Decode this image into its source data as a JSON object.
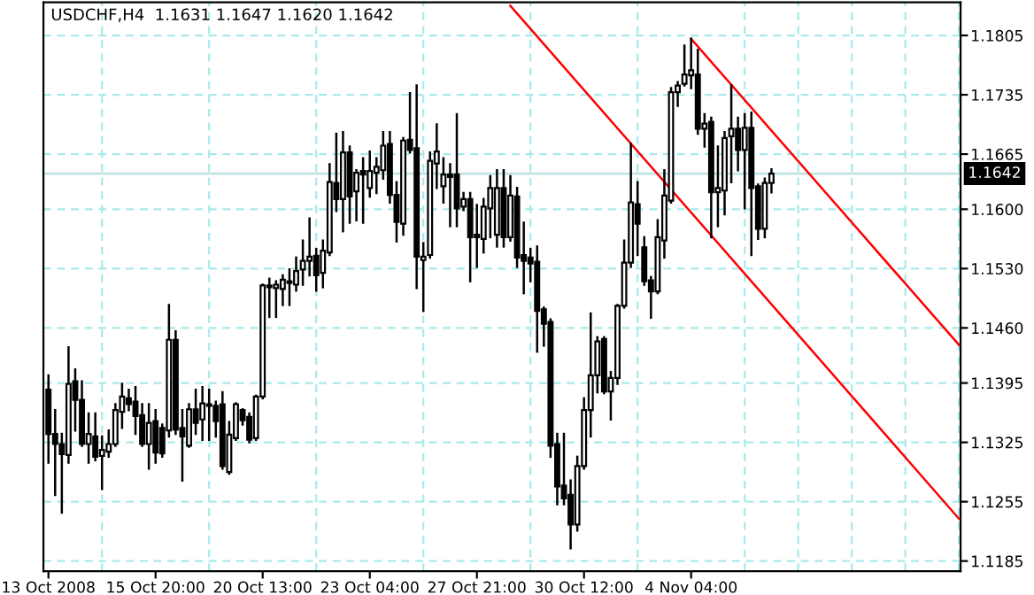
{
  "chart_data": {
    "type": "candlestick",
    "title": "USDCHF,H4  1.1631 1.1647 1.1620 1.1642",
    "categories": [
      "13 Oct 2008",
      null,
      null,
      null,
      null,
      null,
      null,
      null,
      null,
      null,
      null,
      null,
      null,
      null,
      null,
      null,
      "15 Oct 20:00",
      null,
      null,
      null,
      null,
      null,
      null,
      null,
      null,
      null,
      null,
      null,
      null,
      null,
      null,
      null,
      "20 Oct 13:00",
      null,
      null,
      null,
      null,
      null,
      null,
      null,
      null,
      null,
      null,
      null,
      null,
      null,
      null,
      null,
      "23 Oct 04:00",
      null,
      null,
      null,
      null,
      null,
      null,
      null,
      null,
      null,
      null,
      null,
      null,
      null,
      null,
      null,
      "27 Oct 21:00",
      null,
      null,
      null,
      null,
      null,
      null,
      null,
      null,
      null,
      null,
      null,
      null,
      null,
      null,
      null,
      "30 Oct 12:00",
      null,
      null,
      null,
      null,
      null,
      null,
      null,
      null,
      null,
      null,
      null,
      null,
      null,
      null,
      null,
      "4 Nov 04:00",
      null,
      null,
      null,
      null,
      null,
      null,
      null,
      null,
      null,
      null,
      null,
      null,
      null,
      null,
      null,
      null,
      null,
      null,
      null,
      null,
      null,
      null,
      null,
      null,
      null,
      null,
      null,
      null,
      null,
      null,
      null,
      null,
      null,
      null,
      null,
      null,
      null,
      null,
      null,
      null
    ],
    "ohlc": [
      [
        1.1387,
        1.1404,
        1.1301,
        1.1335
      ],
      [
        1.1335,
        1.1363,
        1.1263,
        1.1323
      ],
      [
        1.1323,
        1.1335,
        1.1242,
        1.1311
      ],
      [
        1.131,
        1.1437,
        1.1301,
        1.1394
      ],
      [
        1.1397,
        1.1411,
        1.1339,
        1.1375
      ],
      [
        1.1375,
        1.1397,
        1.1321,
        1.1323
      ],
      [
        1.1323,
        1.1359,
        1.1301,
        1.1335
      ],
      [
        1.1332,
        1.1359,
        1.1304,
        1.1308
      ],
      [
        1.1309,
        1.1332,
        1.127,
        1.1316
      ],
      [
        1.1314,
        1.1339,
        1.1308,
        1.1323
      ],
      [
        1.1323,
        1.137,
        1.1321,
        1.1363
      ],
      [
        1.1361,
        1.1394,
        1.1342,
        1.1379
      ],
      [
        1.1377,
        1.1387,
        1.1363,
        1.137
      ],
      [
        1.1373,
        1.139,
        1.1335,
        1.1356
      ],
      [
        1.1357,
        1.137,
        1.1321,
        1.1323
      ],
      [
        1.1323,
        1.137,
        1.1294,
        1.1348
      ],
      [
        1.135,
        1.1363,
        1.1301,
        1.1313
      ],
      [
        1.1342,
        1.1346,
        1.1308,
        1.1312
      ],
      [
        1.1339,
        1.1487,
        1.1332,
        1.1446
      ],
      [
        1.1446,
        1.1456,
        1.1335,
        1.134
      ],
      [
        1.1342,
        1.1363,
        1.128,
        1.1332
      ],
      [
        1.1321,
        1.137,
        1.132,
        1.1364
      ],
      [
        1.1364,
        1.1387,
        1.1335,
        1.1348
      ],
      [
        1.1352,
        1.139,
        1.1328,
        1.1371
      ],
      [
        1.137,
        1.1387,
        1.1328,
        1.1368
      ],
      [
        1.1368,
        1.1373,
        1.1332,
        1.135
      ],
      [
        1.137,
        1.1384,
        1.1294,
        1.1297
      ],
      [
        1.129,
        1.1349,
        1.1288,
        1.1334
      ],
      [
        1.133,
        1.1371,
        1.1328,
        1.137
      ],
      [
        1.1363,
        1.1364,
        1.1346,
        1.1351
      ],
      [
        1.1355,
        1.1359,
        1.1325,
        1.1328
      ],
      [
        1.133,
        1.138,
        1.1328,
        1.1379
      ],
      [
        1.1379,
        1.1511,
        1.1377,
        1.151
      ],
      [
        1.151,
        1.1518,
        1.1473,
        1.1508
      ],
      [
        1.1507,
        1.1515,
        1.1473,
        1.1511
      ],
      [
        1.1506,
        1.1522,
        1.1487,
        1.1517
      ],
      [
        1.1515,
        1.1529,
        1.1487,
        1.1513
      ],
      [
        1.1511,
        1.1543,
        1.1504,
        1.1527
      ],
      [
        1.1529,
        1.1563,
        1.1511,
        1.1539
      ],
      [
        1.1539,
        1.1589,
        1.1522,
        1.1544
      ],
      [
        1.1545,
        1.1553,
        1.1504,
        1.1522
      ],
      [
        1.1525,
        1.1563,
        1.1508,
        1.1551
      ],
      [
        1.1549,
        1.1653,
        1.1546,
        1.1632
      ],
      [
        1.1631,
        1.1689,
        1.1598,
        1.1612
      ],
      [
        1.1612,
        1.1691,
        1.1574,
        1.1667
      ],
      [
        1.1667,
        1.1674,
        1.1584,
        1.1615
      ],
      [
        1.1621,
        1.1646,
        1.1587,
        1.1643
      ],
      [
        1.1645,
        1.166,
        1.1584,
        1.1641
      ],
      [
        1.1625,
        1.1668,
        1.1615,
        1.1645
      ],
      [
        1.1643,
        1.166,
        1.1619,
        1.165
      ],
      [
        1.1646,
        1.1691,
        1.1636,
        1.1675
      ],
      [
        1.1677,
        1.1691,
        1.1608,
        1.1617
      ],
      [
        1.1617,
        1.1632,
        1.1562,
        1.1585
      ],
      [
        1.1583,
        1.1684,
        1.157,
        1.1681
      ],
      [
        1.1682,
        1.1737,
        1.1667,
        1.167
      ],
      [
        1.1672,
        1.1746,
        1.1507,
        1.1544
      ],
      [
        1.154,
        1.156,
        1.148,
        1.1544
      ],
      [
        1.1546,
        1.1667,
        1.1543,
        1.1657
      ],
      [
        1.1654,
        1.17,
        1.1625,
        1.1668
      ],
      [
        1.1627,
        1.166,
        1.1608,
        1.1641
      ],
      [
        1.1641,
        1.1653,
        1.158,
        1.1638
      ],
      [
        1.1641,
        1.1712,
        1.158,
        1.1601
      ],
      [
        1.1603,
        1.1619,
        1.1599,
        1.1612
      ],
      [
        1.1612,
        1.1619,
        1.1515,
        1.1567
      ],
      [
        1.157,
        1.1605,
        1.1532,
        1.1567
      ],
      [
        1.1565,
        1.1612,
        1.1549,
        1.1603
      ],
      [
        1.1601,
        1.1639,
        1.1567,
        1.1625
      ],
      [
        1.157,
        1.1646,
        1.1556,
        1.1625
      ],
      [
        1.1625,
        1.1646,
        1.1556,
        1.1567
      ],
      [
        1.1567,
        1.1639,
        1.1563,
        1.1616
      ],
      [
        1.1615,
        1.1625,
        1.1532,
        1.1543
      ],
      [
        1.1546,
        1.1584,
        1.1501,
        1.1539
      ],
      [
        1.1543,
        1.1553,
        1.1515,
        1.1536
      ],
      [
        1.1538,
        1.1556,
        1.1432,
        1.148
      ],
      [
        1.1482,
        1.1484,
        1.1439,
        1.1465
      ],
      [
        1.1467,
        1.147,
        1.1308,
        1.1321
      ],
      [
        1.1323,
        1.1335,
        1.1252,
        1.1273
      ],
      [
        1.1274,
        1.1335,
        1.1252,
        1.1259
      ],
      [
        1.1263,
        1.128,
        1.12,
        1.1228
      ],
      [
        1.1228,
        1.1308,
        1.1221,
        1.1297
      ],
      [
        1.1297,
        1.1377,
        1.1294,
        1.1363
      ],
      [
        1.1363,
        1.1477,
        1.1332,
        1.1404
      ],
      [
        1.1404,
        1.1449,
        1.1384,
        1.1444
      ],
      [
        1.1447,
        1.1449,
        1.1383,
        1.1385
      ],
      [
        1.1385,
        1.1408,
        1.1352,
        1.1401
      ],
      [
        1.1401,
        1.1487,
        1.1394,
        1.1486
      ],
      [
        1.1486,
        1.1563,
        1.1484,
        1.1537
      ],
      [
        1.1537,
        1.1677,
        1.1532,
        1.1608
      ],
      [
        1.1606,
        1.1632,
        1.1546,
        1.1583
      ],
      [
        1.1555,
        1.1567,
        1.1511,
        1.1515
      ],
      [
        1.1516,
        1.152,
        1.1472,
        1.1503
      ],
      [
        1.1503,
        1.1587,
        1.1501,
        1.1567
      ],
      [
        1.1563,
        1.1646,
        1.1543,
        1.1616
      ],
      [
        1.161,
        1.1743,
        1.1608,
        1.1738
      ],
      [
        1.1738,
        1.175,
        1.1722,
        1.1746
      ],
      [
        1.1748,
        1.1793,
        1.1746,
        1.1759
      ],
      [
        1.1758,
        1.1801,
        1.1743,
        1.1764
      ],
      [
        1.1759,
        1.1788,
        1.1689,
        1.1695
      ],
      [
        1.1695,
        1.1712,
        1.1674,
        1.1701
      ],
      [
        1.1703,
        1.1708,
        1.1567,
        1.162
      ],
      [
        1.162,
        1.1674,
        1.158,
        1.1625
      ],
      [
        1.1622,
        1.1691,
        1.1594,
        1.1684
      ],
      [
        1.1686,
        1.1746,
        1.1632,
        1.1695
      ],
      [
        1.1695,
        1.1708,
        1.1646,
        1.167
      ],
      [
        1.167,
        1.1712,
        1.1601,
        1.1696
      ],
      [
        1.1696,
        1.1714,
        1.1546,
        1.1625
      ],
      [
        1.1627,
        1.1629,
        1.1565,
        1.1577
      ],
      [
        1.1577,
        1.1636,
        1.1567,
        1.1631
      ],
      [
        1.1631,
        1.1647,
        1.162,
        1.1642
      ],
      null,
      null,
      null,
      null,
      null,
      null,
      null,
      null,
      null,
      null,
      null,
      null,
      null,
      null,
      null,
      null,
      null,
      null,
      null,
      null,
      null,
      null,
      null,
      null,
      null,
      null,
      null,
      null
    ],
    "series": [
      {
        "type": "line",
        "color": "#ff0000",
        "values": [
          null,
          null,
          null,
          null,
          null,
          null,
          null,
          null,
          null,
          null,
          null,
          null,
          null,
          null,
          null,
          null,
          null,
          null,
          null,
          null,
          null,
          null,
          null,
          null,
          null,
          null,
          null,
          null,
          null,
          null,
          null,
          null,
          null,
          null,
          null,
          null,
          null,
          null,
          null,
          null,
          null,
          null,
          null,
          null,
          null,
          null,
          null,
          null,
          null,
          null,
          null,
          null,
          null,
          null,
          null,
          null,
          null,
          null,
          null,
          null,
          null,
          null,
          null,
          null,
          null,
          null,
          null,
          null,
          null,
          null,
          null,
          null,
          null,
          null,
          null,
          null,
          null,
          null,
          null,
          null,
          null,
          null,
          null,
          null,
          null,
          null,
          null,
          null,
          null,
          null,
          null,
          null,
          null,
          null,
          null,
          null,
          1.1801,
          null,
          null,
          null,
          null,
          null,
          null,
          null,
          null,
          null,
          null,
          null,
          null,
          null,
          null,
          null,
          null,
          null,
          null,
          null,
          null,
          null,
          null,
          null,
          null,
          null,
          null,
          null,
          null,
          null,
          null,
          null,
          null,
          null,
          null,
          null,
          null,
          null,
          null,
          null,
          1.144
        ]
      },
      {
        "type": "line",
        "color": "#ff0000",
        "values": [
          null,
          null,
          null,
          null,
          null,
          null,
          null,
          null,
          null,
          null,
          null,
          null,
          null,
          null,
          null,
          null,
          null,
          null,
          null,
          null,
          null,
          null,
          null,
          null,
          null,
          null,
          null,
          null,
          null,
          null,
          null,
          null,
          null,
          null,
          null,
          null,
          null,
          null,
          null,
          null,
          null,
          null,
          null,
          null,
          null,
          null,
          null,
          null,
          null,
          null,
          null,
          null,
          null,
          null,
          null,
          null,
          null,
          null,
          null,
          null,
          null,
          null,
          null,
          null,
          null,
          null,
          null,
          null,
          null,
          1.184,
          null,
          null,
          null,
          null,
          null,
          null,
          null,
          null,
          null,
          null,
          null,
          null,
          null,
          null,
          null,
          null,
          null,
          null,
          null,
          null,
          null,
          null,
          null,
          null,
          null,
          null,
          null,
          null,
          null,
          null,
          null,
          null,
          null,
          null,
          null,
          null,
          null,
          null,
          null,
          null,
          null,
          null,
          null,
          null,
          null,
          null,
          null,
          null,
          null,
          null,
          null,
          null,
          null,
          null,
          null,
          null,
          null,
          null,
          null,
          null,
          null,
          null,
          null,
          null,
          null,
          null,
          1.1235
        ]
      }
    ],
    "ylim": [
      1.1173,
      1.1844
    ],
    "yticks": [
      {
        "value": 1.1185,
        "label": "1.1185"
      },
      {
        "value": 1.1255,
        "label": "1.1255"
      },
      {
        "value": 1.1325,
        "label": "1.1325"
      },
      {
        "value": 1.1395,
        "label": "1.1395"
      },
      {
        "value": 1.146,
        "label": "1.1460"
      },
      {
        "value": 1.153,
        "label": "1.1530"
      },
      {
        "value": 1.16,
        "label": "1.1600"
      },
      {
        "value": 1.1665,
        "label": "1.1665"
      },
      {
        "value": 1.1735,
        "label": "1.1735"
      },
      {
        "value": 1.1805,
        "label": "1.1805"
      }
    ],
    "ref_lines": [
      {
        "axis": "y",
        "value": 1.1642,
        "label": "1.1642",
        "color": "#c0e4e4"
      }
    ],
    "grid": true
  }
}
